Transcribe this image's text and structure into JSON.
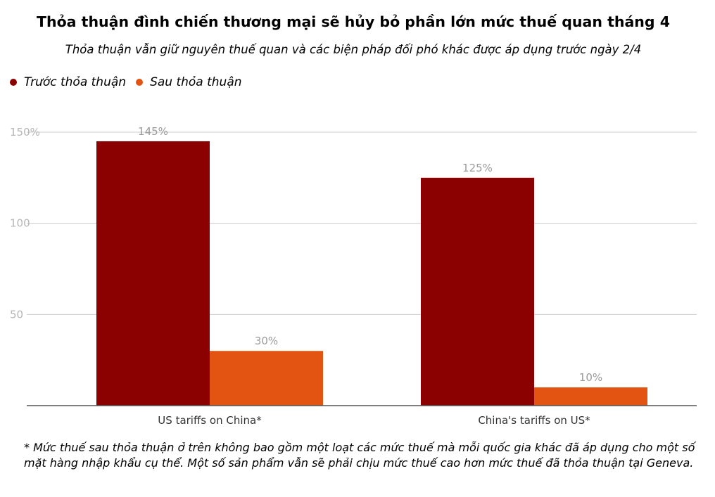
{
  "title": "Thỏa thuận đình chiến thương mại sẽ hủy bỏ phần lớn mức thuế quan tháng 4",
  "subtitle": "Thỏa thuận vẫn giữ nguyên thuế quan và các biện pháp đối phó khác được áp dụng trước ngày 2/4",
  "footnote": "* Mức thuế sau thỏa thuận ở trên không bao gồm một loạt các mức thuế mà mỗi quốc gia khác đã áp dụng cho một số mặt hàng nhập khẩu cụ thể. Một số sản phẩm vẫn sẽ phải chịu mức thuế cao hơn mức thuế đã thỏa thuận tại Geneva.",
  "colors": {
    "before": "#8b0000",
    "after": "#e35412",
    "grid": "#cccccc",
    "tick": "#b5b5b5",
    "label": "#9a9a9a"
  },
  "chart_data": {
    "type": "bar",
    "categories": [
      "US tariffs on China*",
      "China's tariffs on US*"
    ],
    "series": [
      {
        "name": "Trước thỏa thuận",
        "values": [
          145,
          125
        ],
        "labels": [
          "145%",
          "125%"
        ]
      },
      {
        "name": "Sau thỏa thuận",
        "values": [
          30,
          10
        ],
        "labels": [
          "30%",
          "10%"
        ]
      }
    ],
    "yticks": [
      {
        "value": 150,
        "label": "150%"
      },
      {
        "value": 100,
        "label": "100"
      },
      {
        "value": 50,
        "label": "50"
      }
    ],
    "ylim": [
      0,
      150
    ],
    "grid": true,
    "legend_position": "top-left"
  }
}
